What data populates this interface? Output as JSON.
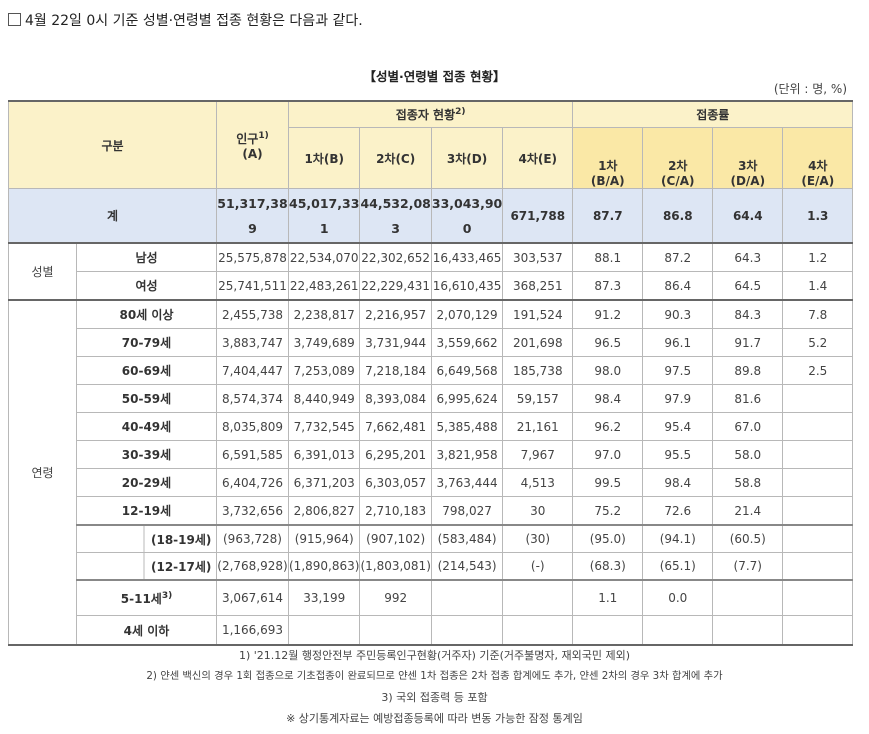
{
  "intro": "4월 22일 0시 기준 성별·연령별 접종 현황은 다음과 같다.",
  "title": "【성별·연령별 접종 현황】",
  "unit": "(단위 : 명, %)",
  "header": {
    "category": "구분",
    "population": "인구",
    "population_sup": "1)",
    "population_sub": "(A)",
    "status_group": "접종자 현황",
    "status_group_sup": "2)",
    "rate_group": "접종률",
    "cols": [
      "1차(B)",
      "2차(C)",
      "3차(D)",
      "4차(E)"
    ],
    "rates": [
      {
        "top": "1차",
        "bottom": "(B/A)"
      },
      {
        "top": "2차",
        "bottom": "(C/A)"
      },
      {
        "top": "3차",
        "bottom": "(D/A)"
      },
      {
        "top": "4차",
        "bottom": "(E/A)"
      }
    ]
  },
  "total": {
    "label": "계",
    "population": [
      "51,317,38",
      "9"
    ],
    "first": [
      "45,017,33",
      "1"
    ],
    "second": [
      "44,532,08",
      "3"
    ],
    "third": [
      "33,043,90",
      "0"
    ],
    "fourth": "671,788",
    "rates": [
      "87.7",
      "86.8",
      "64.4",
      "1.3"
    ]
  },
  "gender": {
    "group": "성별",
    "rows": [
      {
        "label": "남성",
        "values": [
          "25,575,878",
          "22,534,070",
          "22,302,652",
          "16,433,465",
          "303,537",
          "88.1",
          "87.2",
          "64.3",
          "1.2"
        ]
      },
      {
        "label": "여성",
        "values": [
          "25,741,511",
          "22,483,261",
          "22,229,431",
          "16,610,435",
          "368,251",
          "87.3",
          "86.4",
          "64.5",
          "1.4"
        ]
      }
    ]
  },
  "age": {
    "group": "연령",
    "rows": [
      {
        "label": "80세 이상",
        "values": [
          "2,455,738",
          "2,238,817",
          "2,216,957",
          "2,070,129",
          "191,524",
          "91.2",
          "90.3",
          "84.3",
          "7.8"
        ]
      },
      {
        "label": "70-79세",
        "values": [
          "3,883,747",
          "3,749,689",
          "3,731,944",
          "3,559,662",
          "201,698",
          "96.5",
          "96.1",
          "91.7",
          "5.2"
        ]
      },
      {
        "label": "60-69세",
        "values": [
          "7,404,447",
          "7,253,089",
          "7,218,184",
          "6,649,568",
          "185,738",
          "98.0",
          "97.5",
          "89.8",
          "2.5"
        ]
      },
      {
        "label": "50-59세",
        "values": [
          "8,574,374",
          "8,440,949",
          "8,393,084",
          "6,995,624",
          "59,157",
          "98.4",
          "97.9",
          "81.6",
          ""
        ]
      },
      {
        "label": "40-49세",
        "values": [
          "8,035,809",
          "7,732,545",
          "7,662,481",
          "5,385,488",
          "21,161",
          "96.2",
          "95.4",
          "67.0",
          ""
        ]
      },
      {
        "label": "30-39세",
        "values": [
          "6,591,585",
          "6,391,013",
          "6,295,201",
          "3,821,958",
          "7,967",
          "97.0",
          "95.5",
          "58.0",
          ""
        ]
      },
      {
        "label": "20-29세",
        "values": [
          "6,404,726",
          "6,371,203",
          "6,303,057",
          "3,763,444",
          "4,513",
          "99.5",
          "98.4",
          "58.8",
          ""
        ]
      },
      {
        "label": "12-19세",
        "values": [
          "3,732,656",
          "2,806,827",
          "2,710,183",
          "798,027",
          "30",
          "75.2",
          "72.6",
          "21.4",
          ""
        ]
      }
    ],
    "sub_rows": [
      {
        "label": "(18-19세)",
        "values": [
          "(963,728)",
          "(915,964)",
          "(907,102)",
          "(583,484)",
          "(30)",
          "(95.0)",
          "(94.1)",
          "(60.5)",
          ""
        ]
      },
      {
        "label": "(12-17세)",
        "values": [
          "(2,768,928)",
          "(1,890,863)",
          "(1,803,081)",
          "(214,543)",
          "(-)",
          "(68.3)",
          "(65.1)",
          "(7.7)",
          ""
        ]
      }
    ],
    "row_5_11": {
      "label": "5-11세",
      "sup": "3)",
      "values": [
        "3,067,614",
        "33,199",
        "992",
        "",
        "",
        "1.1",
        "0.0",
        "",
        ""
      ]
    },
    "row_under4": {
      "label": "4세 이하",
      "values": [
        "1,166,693",
        "",
        "",
        "",
        "",
        "",
        "",
        "",
        ""
      ]
    }
  },
  "notes": [
    "1) '21.12월 행정안전부 주민등록인구현황(거주자) 기준(거주불명자, 재외국민 제외)",
    "2) 얀센 백신의 경우 1회 접종으로 기초접종이 완료되므로 얀센 1차 접종은 2차 접종 합계에도 추가, 얀센 2차의 경우 3차 합계에 추가",
    "3) 국외 접종력 등 포함",
    "※ 상기통계자료는 예방접종등록에 따라 변동 가능한 잠정 통계임"
  ]
}
